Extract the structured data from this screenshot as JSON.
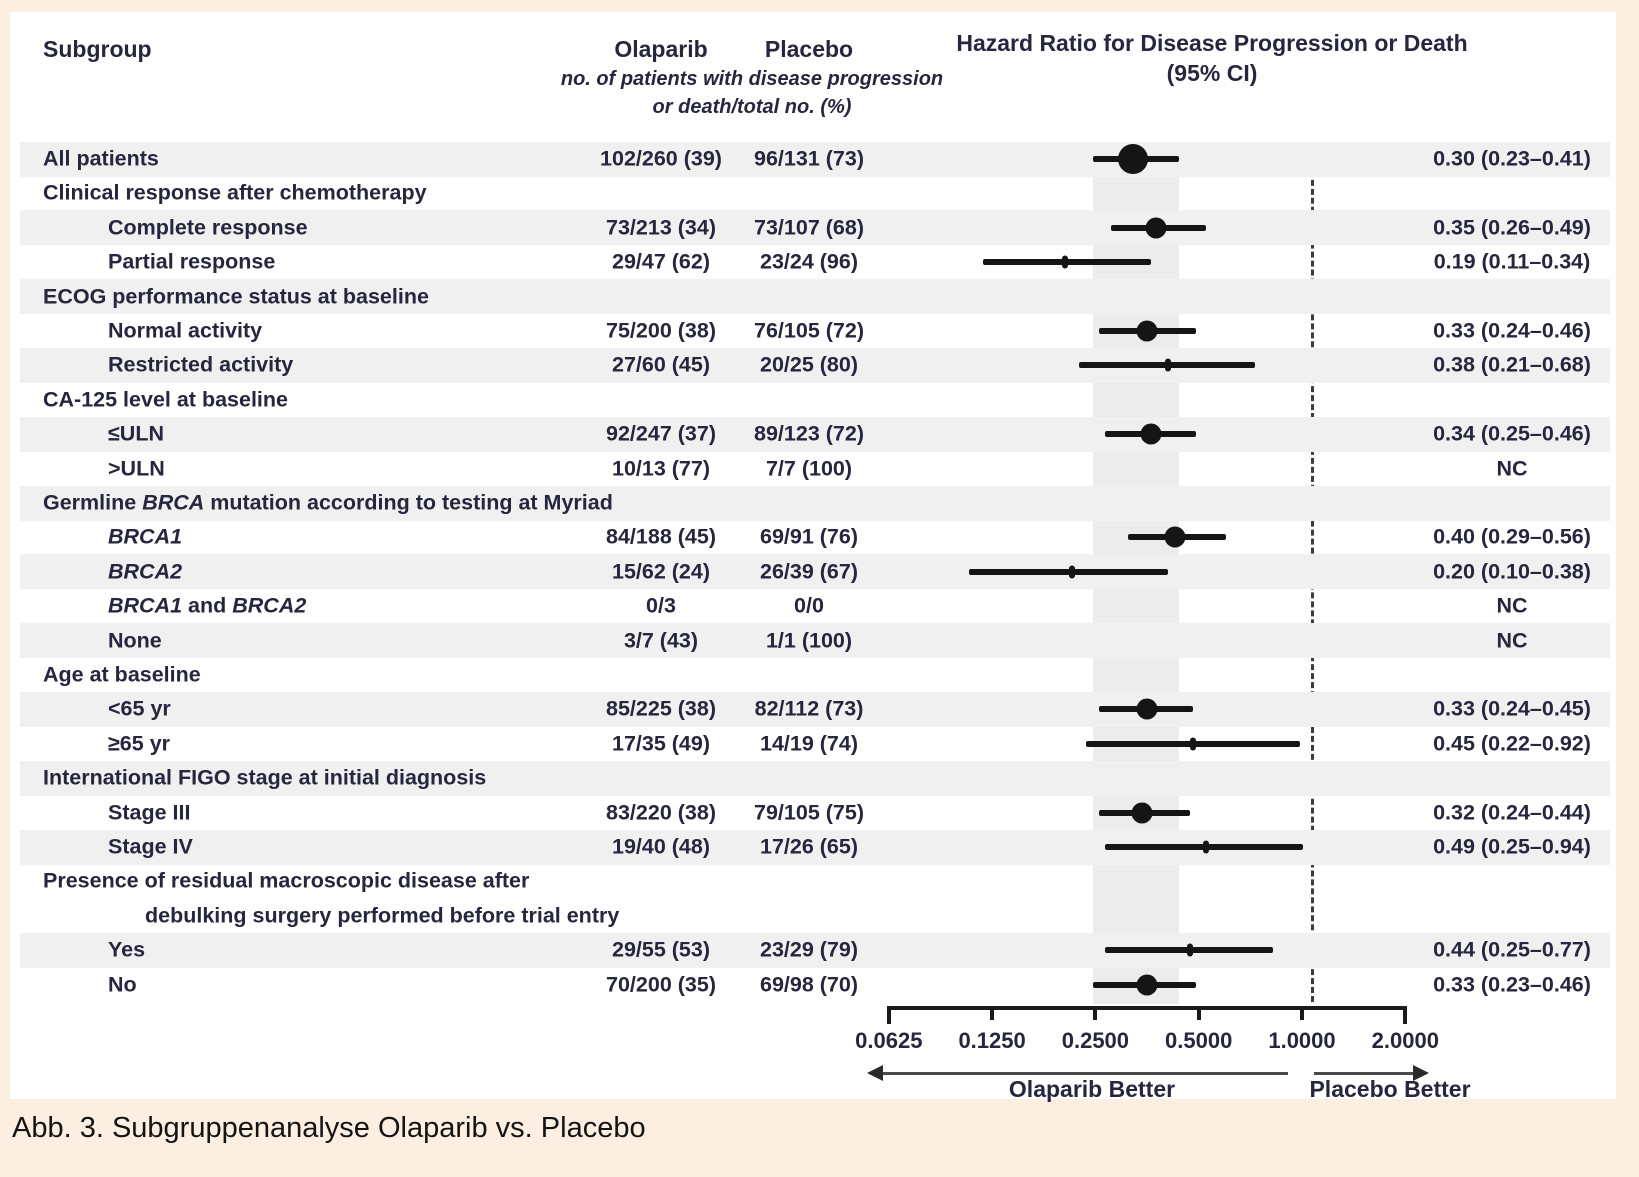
{
  "figure": {
    "caption": "Abb. 3. Subgruppenanalyse Olaparib vs. Placebo",
    "colors": {
      "page_background": "#fcefe1",
      "panel_background": "#ffffff",
      "zebra_row": "#f0f0f0",
      "text": "#26263e",
      "marker": "#151515"
    },
    "header": {
      "subgroup": "Subgroup",
      "olaparib": "Olaparib",
      "placebo": "Placebo",
      "events_note_line1": "no. of patients with disease progression",
      "events_note_line2": "or death/total no. (%)",
      "hr_title_line1": "Hazard Ratio for Disease Progression or Death",
      "hr_title_line2": "(95% CI)"
    },
    "footer": {
      "left_arrow_label": "Olaparib Better",
      "right_arrow_label": "Placebo Better"
    }
  },
  "chart_data": {
    "type": "forest",
    "x_scale": "log2",
    "x_ticks": [
      0.0625,
      0.125,
      0.25,
      0.5,
      1.0,
      2.0
    ],
    "x_tick_labels": [
      "0.0625",
      "0.1250",
      "0.2500",
      "0.5000",
      "1.0000",
      "2.0000"
    ],
    "x_range": [
      0.0625,
      2.0
    ],
    "reference_line": 1.0,
    "overall_ci_band": [
      0.23,
      0.41
    ],
    "rows": [
      {
        "type": "overall",
        "shaded": true,
        "label": [
          {
            "t": "All patients"
          }
        ],
        "olaparib": "102/260 (39)",
        "placebo": "96/131 (73)",
        "hr": 0.3,
        "lo": 0.23,
        "hi": 0.41,
        "hr_label": "0.30 (0.23–0.41)",
        "marker": "large"
      },
      {
        "type": "group",
        "shaded": false,
        "label": [
          {
            "t": "Clinical response after chemotherapy"
          }
        ]
      },
      {
        "type": "item",
        "shaded": true,
        "label": [
          {
            "t": "Complete response"
          }
        ],
        "olaparib": "73/213 (34)",
        "placebo": "73/107 (68)",
        "hr": 0.35,
        "lo": 0.26,
        "hi": 0.49,
        "hr_label": "0.35 (0.26–0.49)",
        "marker": "medium"
      },
      {
        "type": "item",
        "shaded": false,
        "label": [
          {
            "t": "Partial response"
          }
        ],
        "olaparib": "29/47 (62)",
        "placebo": "23/24 (96)",
        "hr": 0.19,
        "lo": 0.11,
        "hi": 0.34,
        "hr_label": "0.19 (0.11–0.34)",
        "marker": "small"
      },
      {
        "type": "group",
        "shaded": true,
        "label": [
          {
            "t": "ECOG performance status at baseline"
          }
        ]
      },
      {
        "type": "item",
        "shaded": false,
        "label": [
          {
            "t": "Normal activity"
          }
        ],
        "olaparib": "75/200 (38)",
        "placebo": "76/105 (72)",
        "hr": 0.33,
        "lo": 0.24,
        "hi": 0.46,
        "hr_label": "0.33 (0.24–0.46)",
        "marker": "medium"
      },
      {
        "type": "item",
        "shaded": true,
        "label": [
          {
            "t": "Restricted activity"
          }
        ],
        "olaparib": "27/60 (45)",
        "placebo": "20/25 (80)",
        "hr": 0.38,
        "lo": 0.21,
        "hi": 0.68,
        "hr_label": "0.38 (0.21–0.68)",
        "marker": "small"
      },
      {
        "type": "group",
        "shaded": false,
        "label": [
          {
            "t": "CA-125 level at baseline"
          }
        ]
      },
      {
        "type": "item",
        "shaded": true,
        "label": [
          {
            "t": "≤ULN"
          }
        ],
        "olaparib": "92/247 (37)",
        "placebo": "89/123 (72)",
        "hr": 0.34,
        "lo": 0.25,
        "hi": 0.46,
        "hr_label": "0.34 (0.25–0.46)",
        "marker": "medium"
      },
      {
        "type": "item",
        "shaded": false,
        "label": [
          {
            "t": ">ULN"
          }
        ],
        "olaparib": "10/13 (77)",
        "placebo": "7/7 (100)",
        "hr_label": "NC"
      },
      {
        "type": "group",
        "shaded": true,
        "label": [
          {
            "t": "Germline "
          },
          {
            "t": "BRCA",
            "i": 1
          },
          {
            "t": " mutation according to testing at Myriad"
          }
        ]
      },
      {
        "type": "item",
        "shaded": false,
        "label": [
          {
            "t": "BRCA1",
            "i": 1
          }
        ],
        "olaparib": "84/188 (45)",
        "placebo": "69/91 (76)",
        "hr": 0.4,
        "lo": 0.29,
        "hi": 0.56,
        "hr_label": "0.40 (0.29–0.56)",
        "marker": "medium"
      },
      {
        "type": "item",
        "shaded": true,
        "label": [
          {
            "t": "BRCA2",
            "i": 1
          }
        ],
        "olaparib": "15/62 (24)",
        "placebo": "26/39 (67)",
        "hr": 0.2,
        "lo": 0.1,
        "hi": 0.38,
        "hr_label": "0.20 (0.10–0.38)",
        "marker": "small"
      },
      {
        "type": "item",
        "shaded": false,
        "label": [
          {
            "t": "BRCA1",
            "i": 1
          },
          {
            "t": " and "
          },
          {
            "t": "BRCA2",
            "i": 1
          }
        ],
        "olaparib": "0/3",
        "placebo": "0/0",
        "hr_label": "NC"
      },
      {
        "type": "item",
        "shaded": true,
        "label": [
          {
            "t": "None"
          }
        ],
        "olaparib": "3/7 (43)",
        "placebo": "1/1 (100)",
        "hr_label": "NC"
      },
      {
        "type": "group",
        "shaded": false,
        "label": [
          {
            "t": "Age at baseline"
          }
        ]
      },
      {
        "type": "item",
        "shaded": true,
        "label": [
          {
            "t": "<65 yr"
          }
        ],
        "olaparib": "85/225 (38)",
        "placebo": "82/112 (73)",
        "hr": 0.33,
        "lo": 0.24,
        "hi": 0.45,
        "hr_label": "0.33 (0.24–0.45)",
        "marker": "medium"
      },
      {
        "type": "item",
        "shaded": false,
        "label": [
          {
            "t": "≥65 yr"
          }
        ],
        "olaparib": "17/35 (49)",
        "placebo": "14/19 (74)",
        "hr": 0.45,
        "lo": 0.22,
        "hi": 0.92,
        "hr_label": "0.45 (0.22–0.92)",
        "marker": "small"
      },
      {
        "type": "group",
        "shaded": true,
        "label": [
          {
            "t": "International FIGO stage at initial diagnosis"
          }
        ]
      },
      {
        "type": "item",
        "shaded": false,
        "label": [
          {
            "t": "Stage III"
          }
        ],
        "olaparib": "83/220 (38)",
        "placebo": "79/105 (75)",
        "hr": 0.32,
        "lo": 0.24,
        "hi": 0.44,
        "hr_label": "0.32 (0.24–0.44)",
        "marker": "medium"
      },
      {
        "type": "item",
        "shaded": true,
        "label": [
          {
            "t": "Stage IV"
          }
        ],
        "olaparib": "19/40 (48)",
        "placebo": "17/26 (65)",
        "hr": 0.49,
        "lo": 0.25,
        "hi": 0.94,
        "hr_label": "0.49 (0.25–0.94)",
        "marker": "small"
      },
      {
        "type": "group",
        "shaded": false,
        "label": [
          {
            "t": "Presence of residual macroscopic disease after"
          }
        ]
      },
      {
        "type": "cont",
        "shaded": false,
        "label": [
          {
            "t": "debulking surgery performed before trial entry"
          }
        ]
      },
      {
        "type": "item",
        "shaded": true,
        "label": [
          {
            "t": "Yes"
          }
        ],
        "olaparib": "29/55 (53)",
        "placebo": "23/29 (79)",
        "hr": 0.44,
        "lo": 0.25,
        "hi": 0.77,
        "hr_label": "0.44 (0.25–0.77)",
        "marker": "small"
      },
      {
        "type": "item",
        "shaded": false,
        "label": [
          {
            "t": "No"
          }
        ],
        "olaparib": "70/200 (35)",
        "placebo": "69/98 (70)",
        "hr": 0.33,
        "lo": 0.23,
        "hi": 0.46,
        "hr_label": "0.33 (0.23–0.46)",
        "marker": "medium"
      }
    ]
  }
}
